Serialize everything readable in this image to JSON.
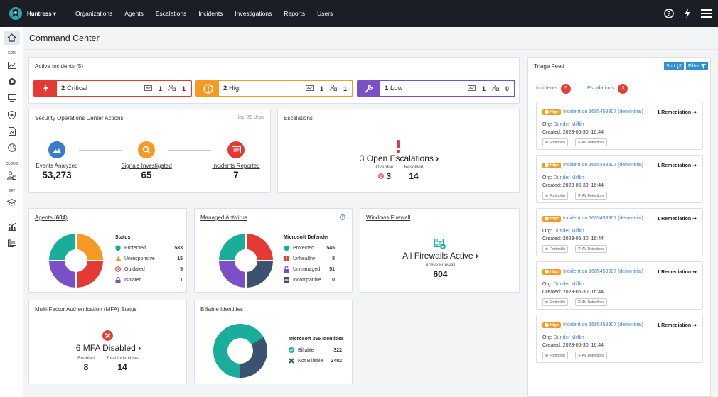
{
  "brand": {
    "name": "Huntress"
  },
  "nav": [
    "Organizations",
    "Agents",
    "Escalations",
    "Incidents",
    "Investigations",
    "Reports",
    "Users"
  ],
  "sidebar": {
    "labels": [
      "EDR",
      "CLOUD",
      "SAT"
    ]
  },
  "page": {
    "title": "Command Center"
  },
  "active_incidents": {
    "title": "Active Incidents (5)",
    "critical": {
      "count": "2",
      "label": "Critical",
      "hosts": "1",
      "users": "1"
    },
    "high": {
      "count": "2",
      "label": "High",
      "hosts": "1",
      "users": "1"
    },
    "low": {
      "count": "1",
      "label": "Low",
      "hosts": "1",
      "users": "0"
    }
  },
  "soc": {
    "title": "Security Operations Center Actions",
    "period": "last 30 days",
    "events_label": "Events Analyzed",
    "events": "53,273",
    "signals_label": "Signals Investigated",
    "signals": "65",
    "incidents_label": "Incidents Reported",
    "incidents": "7"
  },
  "escalations": {
    "title": "Escalations",
    "open": "3 Open Escalations",
    "overdue_label": "Overdue",
    "overdue": "3",
    "resolved_label": "Resolved",
    "resolved": "14"
  },
  "agents": {
    "title_prefix": "Agents (",
    "count": "604",
    "title_suffix": ")",
    "status_title": "Status",
    "rows": [
      {
        "label": "Protected",
        "value": "583"
      },
      {
        "label": "Unresponsive",
        "value": "15"
      },
      {
        "label": "Outdated",
        "value": "5"
      },
      {
        "label": "Isolated",
        "value": "1"
      }
    ]
  },
  "antivirus": {
    "title": "Managed Antivirus",
    "legend_title": "Microsoft Defender",
    "rows": [
      {
        "label": "Protected",
        "value": "545"
      },
      {
        "label": "Unhealthy",
        "value": "8"
      },
      {
        "label": "Unmanaged",
        "value": "51"
      },
      {
        "label": "Incompatible",
        "value": "0"
      }
    ]
  },
  "firewall": {
    "title": "Windows Firewall",
    "headline": "All Firewalls Active",
    "sub_label": "Active Firewall",
    "count": "604"
  },
  "mfa": {
    "title": "Multi-Factor Authentication (MFA) Status",
    "headline": "6 MFA Disabled",
    "enabled_label": "Enabled",
    "enabled": "8",
    "total_label": "Total Indentities",
    "total": "14"
  },
  "billable": {
    "title": "Billable Identities",
    "legend_title": "Microsoft 365 Identities",
    "billable_label": "Billable",
    "billable": "322",
    "not_billable_label": "Not Billable",
    "not_billable": "2402"
  },
  "triage": {
    "title": "Triage Feed",
    "sort_label": "Sort",
    "filter_label": "Filter",
    "tab_incidents": "Incidents",
    "tab_incidents_count": "5",
    "tab_escalations": "Escalations",
    "tab_escalations_count": "3",
    "items": [
      {
        "badge": "High",
        "title": "Incident on 1685458907 (demo-trial)",
        "remediation": "1 Remediation",
        "org_label": "Org:",
        "org": "Dunder Mifflin",
        "created": "Created: 2023-05-30, 16:44",
        "tag1": "Footholds",
        "tag2": "AV Detections"
      },
      {
        "badge": "High",
        "title": "Incident on 1685458907 (demo-trial)",
        "remediation": "1 Remediation",
        "org_label": "Org:",
        "org": "Dunder Mifflin",
        "created": "Created: 2023-05-30, 16:44",
        "tag1": "Footholds",
        "tag2": "AV Detections"
      },
      {
        "badge": "High",
        "title": "Incident on 1685458907 (demo-trial)",
        "remediation": "1 Remediation",
        "org_label": "Org:",
        "org": "Dunder Mifflin",
        "created": "Created: 2023-05-30, 16:44",
        "tag1": "Footholds",
        "tag2": "AV Detections"
      },
      {
        "badge": "High",
        "title": "Incident on 1685458907 (demo-trial)",
        "remediation": "1 Remediation",
        "org_label": "Org:",
        "org": "Dunder Mifflin",
        "created": "Created: 2023-05-30, 16:44",
        "tag1": "Footholds",
        "tag2": "AV Detections"
      },
      {
        "badge": "High",
        "title": "Incident on 1685458907 (demo-trial)",
        "remediation": "1 Remediation",
        "org_label": "Org:",
        "org": "Dunder Mifflin",
        "created": "Created: 2023-05-30, 16:44",
        "tag1": "Footholds",
        "tag2": "AV Detections"
      }
    ]
  },
  "colors": {
    "critical": "#e53935",
    "high": "#f59b25",
    "low": "#7b4fc8",
    "teal": "#1aae9a",
    "orange": "#f59b25",
    "red": "#e53935",
    "purple": "#7b4fc8",
    "navy": "#3b5370",
    "blue": "#3a7cc8"
  }
}
